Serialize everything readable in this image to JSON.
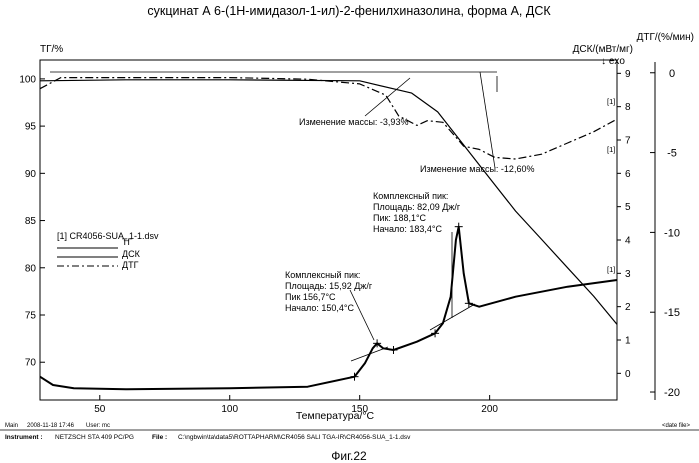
{
  "chart_data": {
    "type": "line",
    "title": "сукцинат А 6-(1Н-имидазол-1-ил)-2-фенилхиназолина, форма А, ДСК",
    "xlabel": "Температура/°C",
    "xlim": [
      27,
      249
    ],
    "x_ticks": [
      50,
      100,
      150,
      200
    ],
    "left_axis": {
      "label": "ТГ/%",
      "ylim": [
        66,
        102
      ],
      "ticks": [
        70,
        75,
        80,
        85,
        90,
        95,
        100
      ]
    },
    "dsc_axis": {
      "label": "ДСК/(мВт/мг)",
      "direction": "↓ exo",
      "ylim": [
        -0.8,
        9.4
      ],
      "ticks": [
        0,
        1,
        2,
        3,
        4,
        5,
        6,
        7,
        8,
        9
      ]
    },
    "dtg_axis": {
      "label": "ДТГ/(%/мин)",
      "ylim": [
        -20.5,
        0.8
      ],
      "ticks": [
        0,
        -5,
        -10,
        -15,
        -20
      ]
    },
    "grid": false,
    "series": [
      {
        "name": "ТГ",
        "style": "solid",
        "axis": "left",
        "x": [
          27,
          60,
          100,
          150,
          170,
          180,
          190,
          200,
          210,
          220,
          230,
          240,
          249
        ],
        "y": [
          99.8,
          99.9,
          99.9,
          99.8,
          98.5,
          96.5,
          93.0,
          89.5,
          86.0,
          83.0,
          80.0,
          77.0,
          74.0
        ]
      },
      {
        "name": "ДСК",
        "style": "solid",
        "axis": "dsc",
        "x": [
          27,
          32,
          40,
          60,
          100,
          130,
          148,
          152,
          155,
          156.7,
          159,
          163,
          172,
          179,
          182,
          185,
          187,
          188.1,
          190,
          192,
          196,
          210,
          230,
          249
        ],
        "y": [
          -0.1,
          -0.35,
          -0.45,
          -0.48,
          -0.45,
          -0.4,
          -0.1,
          0.3,
          0.75,
          0.9,
          0.75,
          0.7,
          0.95,
          1.2,
          1.5,
          2.3,
          4.0,
          4.4,
          3.0,
          2.1,
          2.0,
          2.3,
          2.6,
          2.8
        ]
      },
      {
        "name": "ДТГ",
        "style": "dash-dot",
        "axis": "dtg",
        "x": [
          27,
          35,
          60,
          100,
          130,
          150,
          160,
          165,
          172,
          176,
          182,
          190,
          196,
          202,
          210,
          220,
          230,
          240,
          249
        ],
        "y": [
          -1.0,
          -0.3,
          -0.3,
          -0.3,
          -0.4,
          -0.7,
          -1.4,
          -2.7,
          -3.3,
          -3.0,
          -3.1,
          -4.6,
          -4.8,
          -5.3,
          -5.4,
          -5.1,
          -4.4,
          -3.7,
          -2.9
        ]
      }
    ],
    "legend": {
      "position": "left",
      "file": "[1] CR4056-SUA_1-1.dsv",
      "entries": [
        "ТГ",
        "ДСК",
        "ДТГ"
      ]
    },
    "annotations": {
      "mass1": "Изменение массы: -3,93%",
      "mass2": "Изменение массы: -12,60%",
      "peak1": [
        "Комплексный пик:",
        "Площадь: 15,92 Дж/г",
        "Пик 156,7°C",
        "Начало: 150,4°C"
      ],
      "peak2": [
        "Комплексный пик:",
        "Площадь: 82,09 Дж/г",
        "Пик: 188,1°C",
        "Начало: 183,4°C"
      ],
      "curve_tag": "[1]"
    }
  },
  "footer": {
    "main_label": "Main",
    "timestamp": "2008-11-18 17:46",
    "user": "User: mc",
    "date_file": "<date file>",
    "instrument_label": "Instrument :",
    "instrument_value": "NETZSCH STA 409 PC/PG",
    "file_label": "File :",
    "file_value": "C:\\ngbwin\\ta\\data5\\ROTTAPHARM\\CR4056 SALI TGA-IR\\CR4056-SUA_1-1.dsv"
  },
  "caption": "Фиг.22"
}
